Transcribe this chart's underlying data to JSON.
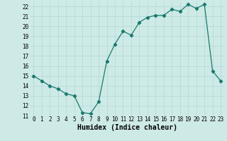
{
  "xlabel": "Humidex (Indice chaleur)",
  "x": [
    0,
    1,
    2,
    3,
    4,
    5,
    6,
    7,
    8,
    9,
    10,
    11,
    12,
    13,
    14,
    15,
    16,
    17,
    18,
    19,
    20,
    21,
    22,
    23
  ],
  "y": [
    15.0,
    14.5,
    14.0,
    13.7,
    13.2,
    13.0,
    11.3,
    11.2,
    12.4,
    16.5,
    18.2,
    19.5,
    19.1,
    20.4,
    20.9,
    21.1,
    21.1,
    21.7,
    21.5,
    22.2,
    21.8,
    22.2,
    15.5,
    14.5
  ],
  "line_color": "#1a7a6e",
  "marker": "D",
  "markersize": 2.2,
  "bg_color": "#ceeae7",
  "grid_color": "#b0d8d4",
  "ylim": [
    11,
    22.5
  ],
  "xlim": [
    -0.5,
    23.5
  ],
  "yticks": [
    11,
    12,
    13,
    14,
    15,
    16,
    17,
    18,
    19,
    20,
    21,
    22
  ],
  "xticks": [
    0,
    1,
    2,
    3,
    4,
    5,
    6,
    7,
    8,
    9,
    10,
    11,
    12,
    13,
    14,
    15,
    16,
    17,
    18,
    19,
    20,
    21,
    22,
    23
  ],
  "tick_fontsize": 5.5,
  "xlabel_fontsize": 7,
  "linewidth": 0.9
}
